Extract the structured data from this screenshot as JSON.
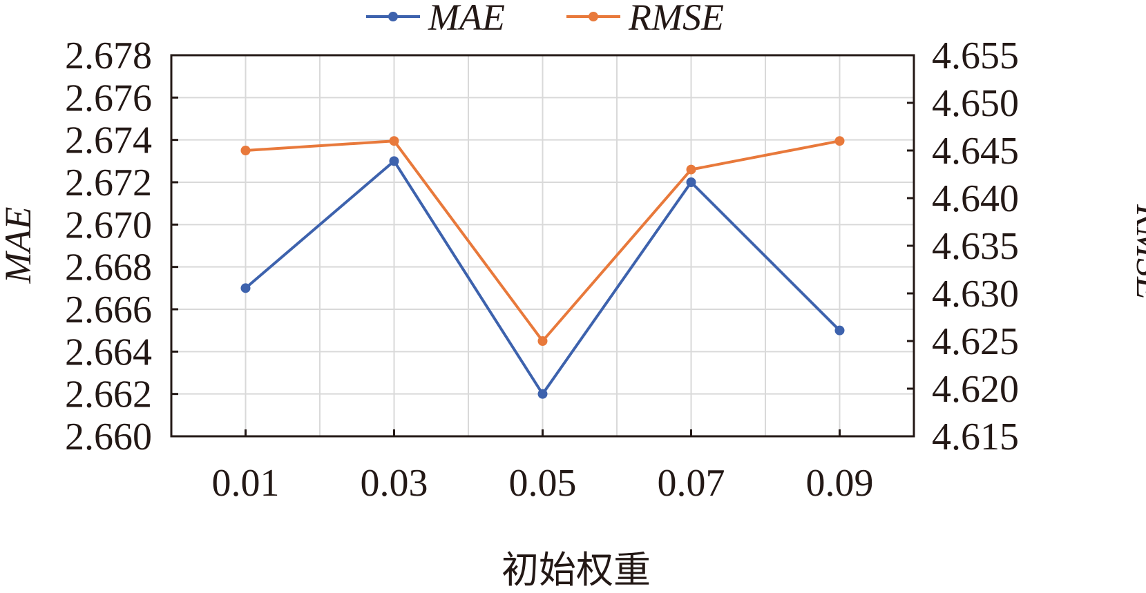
{
  "chart_data": {
    "type": "line",
    "categories": [
      "0.01",
      "0.03",
      "0.05",
      "0.07",
      "0.09"
    ],
    "xlabel": "初始权重",
    "ylabel_left": "MAE",
    "ylabel_right": "RMSE",
    "y_left": {
      "lim": [
        2.66,
        2.678
      ],
      "ticks": [
        "2.660",
        "2.662",
        "2.664",
        "2.666",
        "2.668",
        "2.670",
        "2.672",
        "2.674",
        "2.676",
        "2.678"
      ]
    },
    "y_right": {
      "lim": [
        4.615,
        4.655
      ],
      "ticks": [
        "4.615",
        "4.620",
        "4.625",
        "4.630",
        "4.635",
        "4.640",
        "4.645",
        "4.650",
        "4.655"
      ]
    },
    "grid": true,
    "legend_position": "top-center",
    "series": [
      {
        "name": "MAE",
        "axis": "left",
        "color": "#3d62ad",
        "values": [
          2.667,
          2.673,
          2.662,
          2.672,
          2.665
        ]
      },
      {
        "name": "RMSE",
        "axis": "right",
        "color": "#e8793b",
        "values": [
          4.645,
          4.646,
          4.625,
          4.643,
          4.646
        ]
      }
    ]
  }
}
